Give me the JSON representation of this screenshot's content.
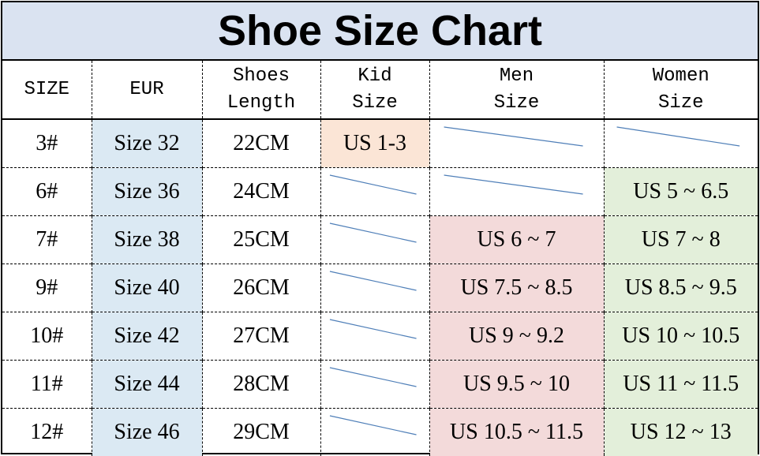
{
  "title": "Shoe Size Chart",
  "headers": [
    {
      "line1": "SIZE",
      "line2": ""
    },
    {
      "line1": "EUR",
      "line2": ""
    },
    {
      "line1": "Shoes",
      "line2": "Length"
    },
    {
      "line1": "Kid",
      "line2": "Size"
    },
    {
      "line1": "Men",
      "line2": "Size"
    },
    {
      "line1": "Women",
      "line2": "Size"
    }
  ],
  "rows": [
    {
      "size": "3#",
      "eur": "Size 32",
      "length": "22CM",
      "kid": "US 1-3",
      "men": "",
      "women": ""
    },
    {
      "size": "6#",
      "eur": "Size 36",
      "length": "24CM",
      "kid": "",
      "men": "",
      "women": "US 5 ~ 6.5"
    },
    {
      "size": "7#",
      "eur": "Size 38",
      "length": "25CM",
      "kid": "",
      "men": "US 6 ~ 7",
      "women": "US 7 ~ 8"
    },
    {
      "size": "9#",
      "eur": "Size 40",
      "length": "26CM",
      "kid": "",
      "men": "US 7.5 ~ 8.5",
      "women": "US 8.5 ~ 9.5"
    },
    {
      "size": "10#",
      "eur": "Size 42",
      "length": "27CM",
      "kid": "",
      "men": "US 9 ~ 9.2",
      "women": "US 10 ~ 10.5"
    },
    {
      "size": "11#",
      "eur": "Size 44",
      "length": "28CM",
      "kid": "",
      "men": "US 9.5 ~ 10",
      "women": "US 11 ~ 11.5"
    },
    {
      "size": "12#",
      "eur": "Size 46",
      "length": "29CM",
      "kid": "",
      "men": "US 10.5 ~ 11.5",
      "women": "US 12 ~ 13"
    }
  ],
  "colors": {
    "title_bg": "#dae3f1",
    "eur_bg": "#dbe9f3",
    "kid_bg": "#fbe5d6",
    "men_bg": "#f3dada",
    "women_bg": "#e3efda",
    "empty_slash": "#4f7fb8"
  }
}
